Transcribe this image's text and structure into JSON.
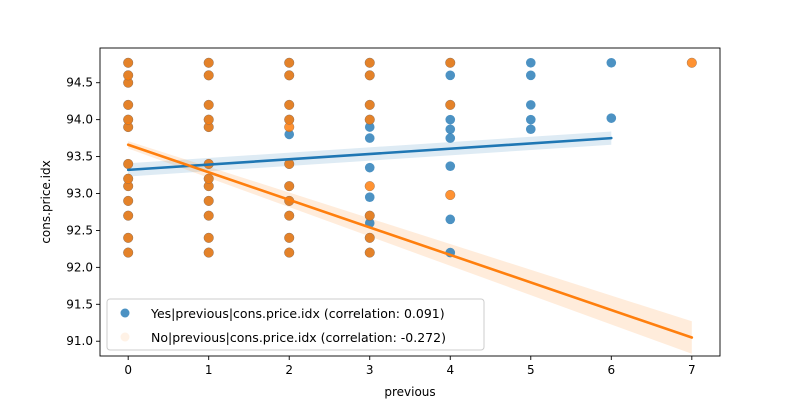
{
  "chart_data": {
    "type": "scatter",
    "xlabel": "previous",
    "ylabel": "cons.price.idx",
    "xlim": [
      -0.35,
      7.35
    ],
    "ylim": [
      90.8,
      94.97
    ],
    "xticks": [
      "0",
      "1",
      "2",
      "3",
      "4",
      "5",
      "6",
      "7"
    ],
    "yticks": [
      "91.0",
      "91.5",
      "92.0",
      "92.5",
      "93.0",
      "93.5",
      "94.0",
      "94.5"
    ],
    "ytick_values": [
      91.0,
      91.5,
      92.0,
      92.5,
      93.0,
      93.5,
      94.0,
      94.5
    ],
    "grid": false,
    "legend_position": "lower-left",
    "series": [
      {
        "name": "Yes|previous|cons.price.idx (correlation: 0.091)",
        "color": "#1f77b4",
        "points": [
          [
            0,
            92.2
          ],
          [
            0,
            92.4
          ],
          [
            0,
            92.7
          ],
          [
            0,
            92.9
          ],
          [
            0,
            93.1
          ],
          [
            0,
            93.2
          ],
          [
            0,
            93.4
          ],
          [
            0,
            93.9
          ],
          [
            0,
            94.0
          ],
          [
            0,
            94.2
          ],
          [
            0,
            94.5
          ],
          [
            0,
            94.6
          ],
          [
            0,
            94.77
          ],
          [
            1,
            92.2
          ],
          [
            1,
            92.4
          ],
          [
            1,
            92.7
          ],
          [
            1,
            92.9
          ],
          [
            1,
            93.1
          ],
          [
            1,
            93.2
          ],
          [
            1,
            93.4
          ],
          [
            1,
            93.9
          ],
          [
            1,
            94.0
          ],
          [
            1,
            94.2
          ],
          [
            1,
            94.6
          ],
          [
            1,
            94.77
          ],
          [
            2,
            92.2
          ],
          [
            2,
            92.4
          ],
          [
            2,
            92.7
          ],
          [
            2,
            92.9
          ],
          [
            2,
            93.1
          ],
          [
            2,
            93.4
          ],
          [
            2,
            93.8
          ],
          [
            2,
            94.0
          ],
          [
            2,
            94.2
          ],
          [
            2,
            94.6
          ],
          [
            2,
            94.77
          ],
          [
            3,
            92.2
          ],
          [
            3,
            92.4
          ],
          [
            3,
            92.6
          ],
          [
            3,
            92.7
          ],
          [
            3,
            92.95
          ],
          [
            3,
            93.35
          ],
          [
            3,
            93.75
          ],
          [
            3,
            93.9
          ],
          [
            3,
            94.0
          ],
          [
            3,
            94.2
          ],
          [
            3,
            94.6
          ],
          [
            3,
            94.77
          ],
          [
            4,
            92.2
          ],
          [
            4,
            92.65
          ],
          [
            4,
            93.37
          ],
          [
            4,
            93.75
          ],
          [
            4,
            93.87
          ],
          [
            4,
            94.0
          ],
          [
            4,
            94.2
          ],
          [
            4,
            94.6
          ],
          [
            4,
            94.77
          ],
          [
            5,
            93.87
          ],
          [
            5,
            94.0
          ],
          [
            5,
            94.2
          ],
          [
            5,
            94.6
          ],
          [
            5,
            94.77
          ],
          [
            6,
            94.02
          ],
          [
            6,
            94.77
          ]
        ],
        "fit": {
          "x_start": 0,
          "x_end": 6,
          "y_start": 93.32,
          "y_end": 93.75,
          "band": 0.09
        }
      },
      {
        "name": "No|previous|cons.price.idx (correlation: -0.272)",
        "color": "#ff7f0e",
        "points": [
          [
            0,
            92.2
          ],
          [
            0,
            92.4
          ],
          [
            0,
            92.7
          ],
          [
            0,
            92.9
          ],
          [
            0,
            93.1
          ],
          [
            0,
            93.2
          ],
          [
            0,
            93.4
          ],
          [
            0,
            93.9
          ],
          [
            0,
            94.0
          ],
          [
            0,
            94.2
          ],
          [
            0,
            94.5
          ],
          [
            0,
            94.6
          ],
          [
            0,
            94.77
          ],
          [
            1,
            92.2
          ],
          [
            1,
            92.4
          ],
          [
            1,
            92.7
          ],
          [
            1,
            92.9
          ],
          [
            1,
            93.1
          ],
          [
            1,
            93.2
          ],
          [
            1,
            93.4
          ],
          [
            1,
            93.9
          ],
          [
            1,
            94.0
          ],
          [
            1,
            94.2
          ],
          [
            1,
            94.6
          ],
          [
            1,
            94.77
          ],
          [
            2,
            92.2
          ],
          [
            2,
            92.4
          ],
          [
            2,
            92.7
          ],
          [
            2,
            92.9
          ],
          [
            2,
            93.1
          ],
          [
            2,
            93.4
          ],
          [
            2,
            93.9
          ],
          [
            2,
            94.0
          ],
          [
            2,
            94.2
          ],
          [
            2,
            94.6
          ],
          [
            2,
            94.77
          ],
          [
            3,
            92.2
          ],
          [
            3,
            92.4
          ],
          [
            3,
            92.7
          ],
          [
            3,
            93.1
          ],
          [
            3,
            94.0
          ],
          [
            3,
            94.2
          ],
          [
            3,
            94.6
          ],
          [
            3,
            94.77
          ],
          [
            4,
            92.98
          ],
          [
            4,
            94.2
          ],
          [
            4,
            94.77
          ],
          [
            7,
            94.77
          ]
        ],
        "fit": {
          "x_start": 0,
          "x_end": 7,
          "y_start": 93.66,
          "y_end": 91.05,
          "band_start": 0.05,
          "band_end": 0.22
        }
      }
    ]
  }
}
